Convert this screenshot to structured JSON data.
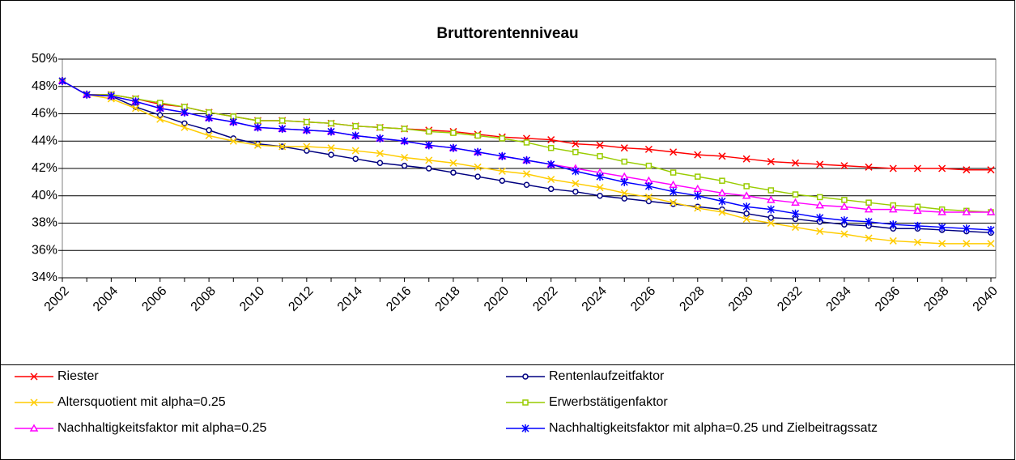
{
  "chart_data": {
    "type": "line",
    "title": "Bruttorentenniveau",
    "categories": [
      "2002",
      null,
      "2004",
      null,
      "2006",
      null,
      "2008",
      null,
      "2010",
      null,
      "2012",
      null,
      "2014",
      null,
      "2016",
      null,
      "2018",
      null,
      "2020",
      null,
      "2022",
      null,
      "2024",
      null,
      "2026",
      null,
      "2028",
      null,
      "2030",
      null,
      "2032",
      null,
      "2034",
      null,
      "2036",
      null,
      "2038",
      null,
      "2040"
    ],
    "ylim": [
      34,
      50
    ],
    "yticks": [
      {
        "value": 34,
        "label": "34%"
      },
      {
        "value": 36,
        "label": "36%"
      },
      {
        "value": 38,
        "label": "38%"
      },
      {
        "value": 40,
        "label": "40%"
      },
      {
        "value": 42,
        "label": "42%"
      },
      {
        "value": 44,
        "label": "44%"
      },
      {
        "value": 46,
        "label": "46%"
      },
      {
        "value": 48,
        "label": "48%"
      },
      {
        "value": 50,
        "label": "50%"
      }
    ],
    "grid": true,
    "legend": "bottom",
    "series": [
      {
        "name": "Riester",
        "color": "#ff0000",
        "marker": "x",
        "values": [
          48.4,
          47.4,
          47.4,
          47.1,
          46.7,
          46.5,
          46.1,
          45.8,
          45.5,
          45.5,
          45.4,
          45.3,
          45.1,
          45.0,
          44.9,
          44.8,
          44.7,
          44.5,
          44.3,
          44.2,
          44.1,
          43.8,
          43.7,
          43.5,
          43.4,
          43.2,
          43.0,
          42.9,
          42.7,
          42.5,
          42.4,
          42.3,
          42.2,
          42.1,
          42.0,
          42.0,
          42.0,
          41.9,
          41.9
        ]
      },
      {
        "name": "Rentenlaufzeitfaktor",
        "color": "#000080",
        "marker": "circle",
        "values": [
          48.4,
          47.4,
          47.3,
          46.5,
          45.9,
          45.3,
          44.8,
          44.2,
          43.8,
          43.6,
          43.3,
          43.0,
          42.7,
          42.4,
          42.2,
          42.0,
          41.7,
          41.4,
          41.1,
          40.8,
          40.5,
          40.3,
          40.0,
          39.8,
          39.6,
          39.4,
          39.2,
          39.0,
          38.7,
          38.4,
          38.3,
          38.1,
          37.9,
          37.8,
          37.6,
          37.6,
          37.5,
          37.4,
          37.3
        ]
      },
      {
        "name": "Altersquotient mit alpha=0.25",
        "color": "#ffcc00",
        "marker": "x",
        "values": [
          48.4,
          47.4,
          47.1,
          46.4,
          45.6,
          45.0,
          44.4,
          44.0,
          43.7,
          43.6,
          43.6,
          43.5,
          43.3,
          43.1,
          42.8,
          42.6,
          42.4,
          42.1,
          41.8,
          41.6,
          41.2,
          40.9,
          40.6,
          40.2,
          39.9,
          39.5,
          39.1,
          38.8,
          38.3,
          38.0,
          37.7,
          37.4,
          37.2,
          36.9,
          36.7,
          36.6,
          36.5,
          36.5,
          36.5
        ]
      },
      {
        "name": "Erwerbstätigenfaktor",
        "color": "#99cc00",
        "marker": "square",
        "values": [
          48.4,
          47.4,
          47.4,
          47.1,
          46.8,
          46.5,
          46.1,
          45.8,
          45.5,
          45.5,
          45.4,
          45.3,
          45.1,
          45.0,
          44.9,
          44.7,
          44.6,
          44.4,
          44.2,
          43.9,
          43.5,
          43.2,
          42.9,
          42.5,
          42.2,
          41.7,
          41.4,
          41.1,
          40.7,
          40.4,
          40.1,
          39.9,
          39.7,
          39.5,
          39.3,
          39.2,
          39.0,
          38.9,
          38.8
        ]
      },
      {
        "name": "Nachhaltigkeitsfaktor mit alpha=0.25",
        "color": "#ff00ff",
        "marker": "triangle",
        "values": [
          48.4,
          47.4,
          47.3,
          46.9,
          46.4,
          46.1,
          45.7,
          45.4,
          45.0,
          44.9,
          44.8,
          44.7,
          44.4,
          44.2,
          44.0,
          43.7,
          43.5,
          43.2,
          42.9,
          42.6,
          42.3,
          42.0,
          41.7,
          41.4,
          41.1,
          40.8,
          40.5,
          40.2,
          40.0,
          39.7,
          39.5,
          39.3,
          39.2,
          39.0,
          39.0,
          38.9,
          38.8,
          38.8,
          38.8
        ]
      },
      {
        "name": "Nachhaltigkeitsfaktor mit alpha=0.25 und Zielbeitragssatz",
        "color": "#0000ff",
        "marker": "star",
        "values": [
          48.4,
          47.4,
          47.3,
          46.9,
          46.4,
          46.1,
          45.7,
          45.4,
          45.0,
          44.9,
          44.8,
          44.7,
          44.4,
          44.2,
          44.0,
          43.7,
          43.5,
          43.2,
          42.9,
          42.6,
          42.3,
          41.8,
          41.4,
          41.0,
          40.7,
          40.3,
          40.0,
          39.6,
          39.2,
          39.0,
          38.7,
          38.4,
          38.2,
          38.1,
          37.9,
          37.8,
          37.7,
          37.6,
          37.5
        ]
      }
    ]
  }
}
